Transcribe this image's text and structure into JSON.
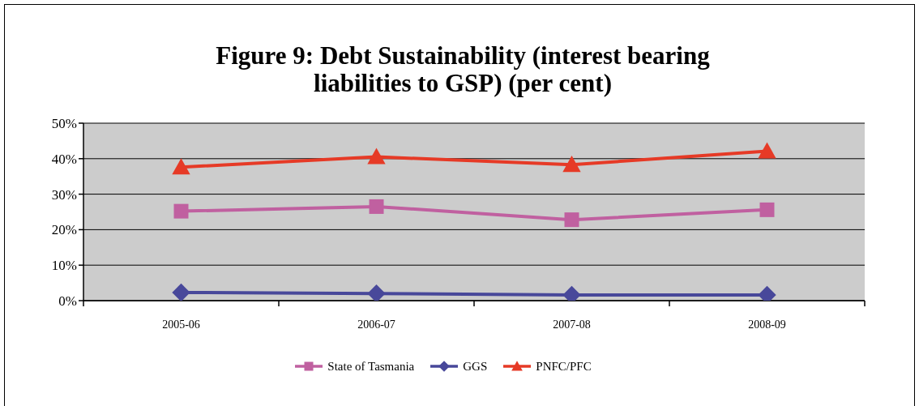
{
  "chart_data": {
    "type": "line",
    "title": "Figure 9: Debt Sustainability (interest bearing liabilities to GSP) (per cent)",
    "categories": [
      "2005-06",
      "2006-07",
      "2007-08",
      "2008-09"
    ],
    "series": [
      {
        "name": "State of Tasmania",
        "color": "#c060a0",
        "marker": "square",
        "values": [
          25.2,
          26.5,
          22.8,
          25.6
        ]
      },
      {
        "name": "GGS",
        "color": "#48489a",
        "marker": "diamond",
        "values": [
          2.3,
          2.0,
          1.6,
          1.6
        ]
      },
      {
        "name": "PNFC/PFC",
        "color": "#e63a26",
        "marker": "triangle",
        "values": [
          37.6,
          40.5,
          38.3,
          42.1
        ]
      }
    ],
    "ylim": [
      0,
      50
    ],
    "yticks": [
      {
        "value": 0,
        "label": "0%"
      },
      {
        "value": 10,
        "label": "10%"
      },
      {
        "value": 20,
        "label": "20%"
      },
      {
        "value": 30,
        "label": "30%"
      },
      {
        "value": 40,
        "label": "40%"
      },
      {
        "value": 50,
        "label": "50%"
      }
    ],
    "grid": "y",
    "legend": "bottom",
    "line_style": "solid"
  }
}
